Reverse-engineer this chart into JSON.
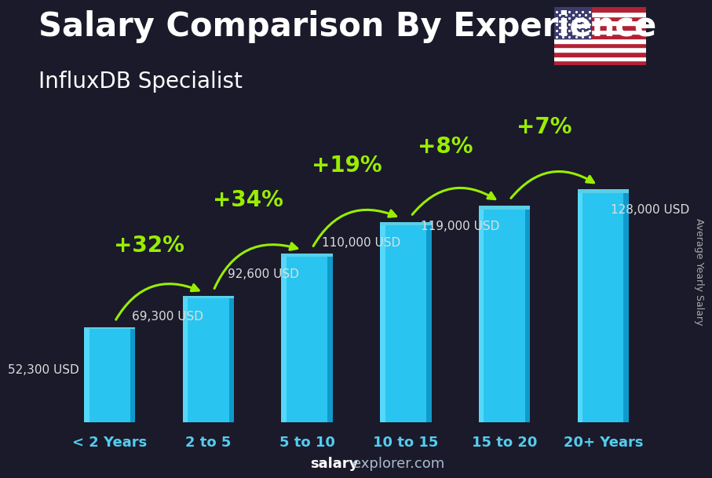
{
  "title": "Salary Comparison By Experience",
  "subtitle": "InfluxDB Specialist",
  "ylabel": "Average Yearly Salary",
  "categories": [
    "< 2 Years",
    "2 to 5",
    "5 to 10",
    "10 to 15",
    "15 to 20",
    "20+ Years"
  ],
  "values": [
    52300,
    69300,
    92600,
    110000,
    119000,
    128000
  ],
  "value_labels": [
    "52,300 USD",
    "69,300 USD",
    "92,600 USD",
    "110,000 USD",
    "119,000 USD",
    "128,000 USD"
  ],
  "pct_changes": [
    "+32%",
    "+34%",
    "+19%",
    "+8%",
    "+7%"
  ],
  "bar_color_main": "#29C5F0",
  "bar_color_light": "#55D8FA",
  "bar_color_dark": "#109ACC",
  "bar_color_top": "#5ACFE8",
  "bg_color": "#1a1a2a",
  "title_color": "#FFFFFF",
  "subtitle_color": "#FFFFFF",
  "label_color": "#FFFFFF",
  "value_color": "#DDDDDD",
  "pct_color": "#99EE00",
  "tick_color": "#55CCEE",
  "ylabel_color": "#AAAAAA",
  "watermark_bold_color": "#FFFFFF",
  "watermark_normal_color": "#AABBCC",
  "title_fontsize": 30,
  "subtitle_fontsize": 20,
  "ylabel_fontsize": 9,
  "value_fontsize": 11,
  "pct_fontsize": 20,
  "cat_fontsize": 13,
  "watermark_fontsize": 13,
  "ylim": [
    0,
    160000
  ],
  "bar_width": 0.52
}
